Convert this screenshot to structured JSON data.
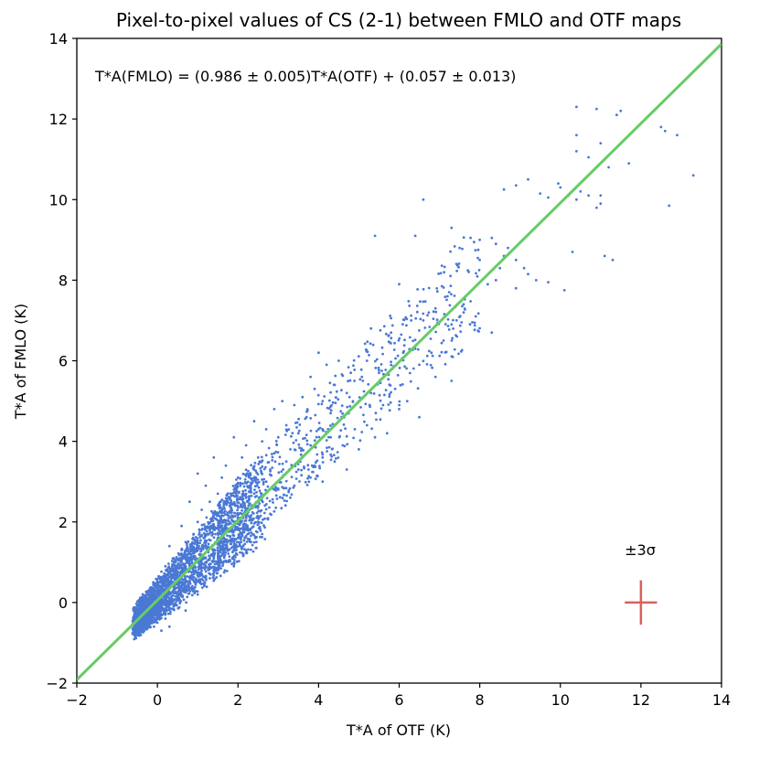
{
  "chart_data": {
    "type": "scatter",
    "title": "Pixel-to-pixel values of CS (2-1) between FMLO and OTF maps",
    "xlabel": "T*A of OTF (K)",
    "ylabel": "T*A of FMLO (K)",
    "xlim": [
      -2,
      14
    ],
    "ylim": [
      -2,
      14
    ],
    "x_ticks": [
      -2,
      0,
      2,
      4,
      6,
      8,
      10,
      12,
      14
    ],
    "y_ticks": [
      -2,
      0,
      2,
      4,
      6,
      8,
      10,
      12,
      14
    ],
    "x_tick_labels": [
      "−2",
      "0",
      "2",
      "4",
      "6",
      "8",
      "10",
      "12",
      "14"
    ],
    "y_tick_labels": [
      "−2",
      "0",
      "2",
      "4",
      "6",
      "8",
      "10",
      "12",
      "14"
    ],
    "fit_equation": "T*A(FMLO) = (0.986 ± 0.005)T*A(OTF) + (0.057 ± 0.013)",
    "fit": {
      "slope": 0.986,
      "intercept": 0.057
    },
    "error_bar": {
      "label": "±3σ",
      "x": 12,
      "y": 0,
      "xerr": 0.4,
      "yerr": 0.55
    },
    "colors": {
      "points": "#4a78d4",
      "fit_line": "#66cc66",
      "error_bar": "#d9605a"
    },
    "grid": false,
    "series": [
      {
        "name": "pixels",
        "points": [
          [
            10.4,
            12.3
          ],
          [
            10.9,
            12.25
          ],
          [
            11.5,
            12.2
          ],
          [
            11.4,
            12.1
          ],
          [
            12.5,
            11.8
          ],
          [
            12.6,
            11.7
          ],
          [
            12.9,
            11.6
          ],
          [
            10.4,
            11.6
          ],
          [
            11.0,
            11.4
          ],
          [
            10.4,
            11.2
          ],
          [
            10.7,
            11.05
          ],
          [
            11.7,
            10.9
          ],
          [
            11.2,
            10.8
          ],
          [
            13.3,
            10.6
          ],
          [
            9.2,
            10.5
          ],
          [
            9.95,
            10.4
          ],
          [
            8.9,
            10.35
          ],
          [
            8.6,
            10.25
          ],
          [
            10.0,
            10.3
          ],
          [
            10.2,
            10.1
          ],
          [
            10.5,
            10.2
          ],
          [
            10.4,
            10.0
          ],
          [
            11.0,
            10.1
          ],
          [
            10.7,
            10.1
          ],
          [
            9.7,
            10.05
          ],
          [
            9.5,
            10.15
          ],
          [
            6.6,
            10.0
          ],
          [
            10.9,
            9.8
          ],
          [
            11.0,
            9.9
          ],
          [
            12.7,
            9.85
          ],
          [
            7.3,
            9.3
          ],
          [
            5.4,
            9.1
          ],
          [
            6.4,
            9.1
          ],
          [
            7.5,
            8.8
          ],
          [
            8.0,
            9.0
          ],
          [
            8.3,
            9.05
          ],
          [
            8.4,
            8.9
          ],
          [
            8.7,
            8.8
          ],
          [
            8.6,
            8.6
          ],
          [
            8.0,
            8.5
          ],
          [
            8.5,
            8.3
          ],
          [
            8.9,
            8.5
          ],
          [
            9.1,
            8.3
          ],
          [
            9.4,
            8.0
          ],
          [
            9.7,
            7.95
          ],
          [
            8.9,
            7.8
          ],
          [
            9.2,
            8.15
          ],
          [
            10.3,
            8.7
          ],
          [
            11.1,
            8.6
          ],
          [
            11.3,
            8.5
          ],
          [
            10.1,
            7.75
          ],
          [
            8.2,
            7.9
          ],
          [
            8.4,
            8.0
          ],
          [
            7.2,
            7.6
          ],
          [
            7.6,
            7.4
          ],
          [
            7.9,
            7.1
          ],
          [
            8.3,
            6.7
          ],
          [
            6.0,
            7.9
          ],
          [
            6.3,
            7.0
          ],
          [
            6.6,
            7.0
          ],
          [
            6.9,
            7.3
          ],
          [
            7.3,
            6.9
          ],
          [
            7.6,
            7.2
          ],
          [
            5.3,
            6.8
          ],
          [
            5.8,
            6.7
          ],
          [
            6.4,
            6.3
          ],
          [
            6.1,
            6.2
          ],
          [
            6.8,
            6.2
          ],
          [
            7.1,
            6.5
          ],
          [
            6.5,
            5.9
          ],
          [
            6.9,
            5.6
          ],
          [
            7.3,
            5.5
          ],
          [
            5.2,
            6.0
          ],
          [
            5.5,
            5.7
          ],
          [
            5.9,
            5.3
          ],
          [
            6.2,
            5.0
          ],
          [
            6.5,
            4.6
          ],
          [
            6.0,
            4.8
          ],
          [
            4.0,
            6.2
          ],
          [
            4.2,
            5.9
          ],
          [
            4.5,
            6.0
          ],
          [
            4.8,
            5.7
          ],
          [
            5.1,
            5.5
          ],
          [
            5.3,
            5.2
          ],
          [
            5.6,
            4.9
          ],
          [
            5.0,
            5.0
          ],
          [
            4.7,
            5.2
          ],
          [
            4.4,
            5.4
          ],
          [
            3.8,
            5.6
          ],
          [
            3.9,
            5.3
          ],
          [
            4.1,
            5.0
          ],
          [
            4.3,
            4.7
          ],
          [
            4.6,
            4.6
          ],
          [
            4.9,
            4.3
          ],
          [
            5.2,
            4.4
          ],
          [
            5.4,
            4.1
          ],
          [
            5.7,
            4.2
          ],
          [
            5.0,
            3.8
          ],
          [
            4.6,
            3.9
          ],
          [
            4.3,
            4.1
          ],
          [
            4.0,
            4.3
          ],
          [
            3.7,
            4.6
          ],
          [
            3.4,
            4.9
          ],
          [
            3.1,
            5.0
          ],
          [
            3.6,
            5.1
          ],
          [
            2.9,
            4.8
          ],
          [
            3.2,
            4.4
          ],
          [
            3.5,
            4.2
          ],
          [
            3.8,
            3.9
          ],
          [
            4.1,
            3.6
          ],
          [
            4.4,
            3.5
          ],
          [
            4.7,
            3.3
          ],
          [
            3.9,
            3.4
          ],
          [
            3.6,
            3.6
          ],
          [
            3.3,
            3.8
          ],
          [
            3.0,
            4.1
          ],
          [
            2.7,
            4.3
          ],
          [
            2.4,
            4.5
          ],
          [
            2.6,
            4.0
          ],
          [
            2.9,
            3.7
          ],
          [
            3.2,
            3.5
          ],
          [
            3.5,
            3.3
          ],
          [
            3.8,
            3.1
          ],
          [
            4.1,
            3.0
          ],
          [
            3.4,
            2.9
          ],
          [
            3.1,
            3.1
          ],
          [
            2.8,
            3.3
          ],
          [
            2.5,
            3.6
          ],
          [
            2.2,
            3.9
          ],
          [
            1.9,
            4.1
          ],
          [
            2.1,
            3.6
          ],
          [
            2.4,
            3.3
          ],
          [
            2.7,
            3.0
          ],
          [
            3.0,
            2.8
          ],
          [
            3.3,
            2.6
          ],
          [
            2.6,
            2.6
          ],
          [
            2.3,
            2.9
          ],
          [
            2.0,
            3.1
          ],
          [
            1.7,
            3.4
          ],
          [
            1.4,
            3.6
          ],
          [
            1.6,
            3.1
          ],
          [
            1.9,
            2.8
          ],
          [
            2.2,
            2.6
          ],
          [
            2.5,
            2.4
          ],
          [
            2.8,
            2.2
          ],
          [
            2.1,
            2.2
          ],
          [
            1.8,
            2.4
          ],
          [
            1.5,
            2.7
          ],
          [
            1.2,
            2.9
          ],
          [
            1.0,
            3.2
          ],
          [
            1.3,
            2.5
          ],
          [
            1.6,
            2.3
          ],
          [
            1.9,
            2.0
          ],
          [
            2.3,
            1.8
          ],
          [
            2.6,
            1.7
          ],
          [
            2.0,
            1.6
          ],
          [
            1.7,
            1.9
          ],
          [
            1.4,
            2.1
          ],
          [
            1.1,
            2.3
          ],
          [
            0.8,
            2.5
          ],
          [
            1.0,
            2.0
          ],
          [
            1.3,
            1.8
          ],
          [
            1.6,
            1.6
          ],
          [
            1.9,
            1.4
          ],
          [
            2.2,
            1.3
          ],
          [
            1.5,
            1.3
          ],
          [
            1.2,
            1.5
          ],
          [
            0.9,
            1.7
          ],
          [
            0.6,
            1.9
          ],
          [
            0.7,
            1.5
          ],
          [
            1.0,
            1.3
          ],
          [
            1.3,
            1.1
          ],
          [
            1.6,
            1.0
          ],
          [
            1.9,
            0.9
          ],
          [
            1.2,
            0.9
          ],
          [
            0.9,
            1.1
          ],
          [
            0.6,
            1.3
          ],
          [
            0.3,
            1.4
          ],
          [
            0.4,
            1.1
          ],
          [
            0.7,
            0.9
          ],
          [
            1.0,
            0.7
          ],
          [
            1.3,
            0.6
          ],
          [
            0.8,
            0.5
          ],
          [
            0.5,
            0.7
          ],
          [
            0.2,
            0.9
          ],
          [
            0.1,
            0.6
          ],
          [
            0.4,
            0.4
          ],
          [
            0.7,
            0.3
          ],
          [
            1.0,
            0.2
          ],
          [
            0.5,
            0.1
          ],
          [
            0.2,
            0.3
          ],
          [
            -0.1,
            0.5
          ],
          [
            -0.2,
            0.2
          ],
          [
            0.1,
            0.0
          ],
          [
            0.4,
            -0.1
          ],
          [
            0.7,
            -0.2
          ],
          [
            0.2,
            -0.3
          ],
          [
            -0.1,
            -0.1
          ],
          [
            -0.4,
            0.1
          ],
          [
            -0.3,
            -0.3
          ],
          [
            0.0,
            -0.5
          ],
          [
            0.3,
            -0.6
          ],
          [
            -0.2,
            -0.6
          ],
          [
            -0.5,
            -0.2
          ],
          [
            0.1,
            -0.7
          ],
          [
            0.2,
            -0.4
          ],
          [
            -0.1,
            0.3
          ],
          [
            0.3,
            0.2
          ]
        ]
      }
    ]
  }
}
